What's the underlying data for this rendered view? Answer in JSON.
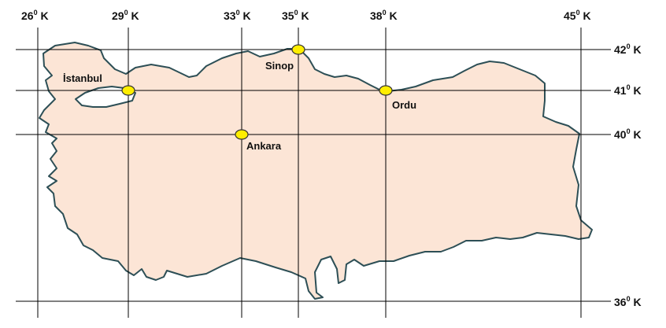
{
  "map": {
    "colors": {
      "land": "#fce5d6",
      "border": "#2d4f56",
      "grid": "#000000",
      "city_marker": "#ffee00"
    },
    "longitudes": [
      {
        "deg": "26",
        "sup": "0",
        "suffix": " K"
      },
      {
        "deg": "29",
        "sup": "0",
        "suffix": " K"
      },
      {
        "deg": "33",
        "sup": "0",
        "suffix": " K"
      },
      {
        "deg": "35",
        "sup": "0",
        "suffix": " K"
      },
      {
        "deg": "38",
        "sup": "0",
        "suffix": " K"
      },
      {
        "deg": "45",
        "sup": "0",
        "suffix": " K"
      }
    ],
    "latitudes": [
      {
        "deg": "42",
        "sup": "0",
        "suffix": " K"
      },
      {
        "deg": "41",
        "sup": "0",
        "suffix": " K"
      },
      {
        "deg": "40",
        "sup": "0",
        "suffix": " K"
      },
      {
        "deg": "36",
        "sup": "0",
        "suffix": " K"
      }
    ],
    "cities": [
      {
        "name": "İstanbul"
      },
      {
        "name": "Sinop"
      },
      {
        "name": "Ordu"
      },
      {
        "name": "Ankara"
      }
    ]
  }
}
